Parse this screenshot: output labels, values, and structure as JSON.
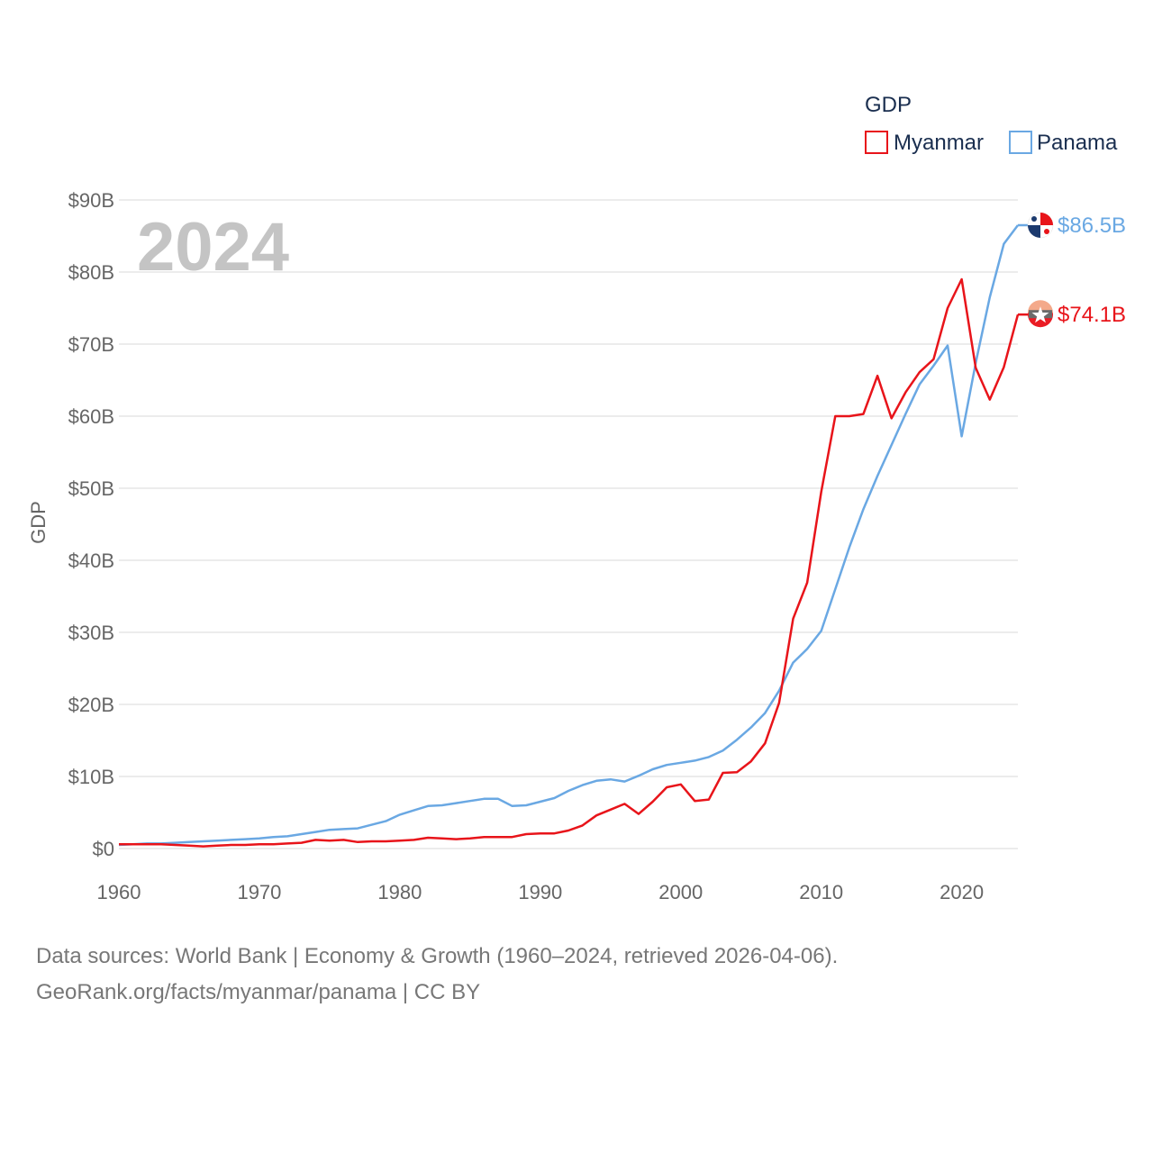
{
  "chart_data": {
    "type": "line",
    "year_watermark": "2024",
    "ylabel": "GDP",
    "legend_title": "GDP",
    "ylim": [
      0,
      90
    ],
    "xlim": [
      1960,
      2024
    ],
    "y_ticks": [
      {
        "value": 0,
        "label": "$0"
      },
      {
        "value": 10,
        "label": "$10B"
      },
      {
        "value": 20,
        "label": "$20B"
      },
      {
        "value": 30,
        "label": "$30B"
      },
      {
        "value": 40,
        "label": "$40B"
      },
      {
        "value": 50,
        "label": "$50B"
      },
      {
        "value": 60,
        "label": "$60B"
      },
      {
        "value": 70,
        "label": "$70B"
      },
      {
        "value": 80,
        "label": "$80B"
      },
      {
        "value": 90,
        "label": "$90B"
      }
    ],
    "x_ticks": [
      {
        "value": 1960,
        "label": "1960"
      },
      {
        "value": 1970,
        "label": "1970"
      },
      {
        "value": 1980,
        "label": "1980"
      },
      {
        "value": 1990,
        "label": "1990"
      },
      {
        "value": 2000,
        "label": "2000"
      },
      {
        "value": 2010,
        "label": "2010"
      },
      {
        "value": 2020,
        "label": "2020"
      }
    ],
    "series": [
      {
        "name": "Myanmar",
        "color": "#e8141a",
        "end_label": "$74.1B",
        "flag": "myanmar-flag",
        "x": [
          1960,
          1961,
          1962,
          1963,
          1964,
          1965,
          1966,
          1967,
          1968,
          1969,
          1970,
          1971,
          1972,
          1973,
          1974,
          1975,
          1976,
          1977,
          1978,
          1979,
          1980,
          1981,
          1982,
          1983,
          1984,
          1985,
          1986,
          1987,
          1988,
          1989,
          1990,
          1991,
          1992,
          1993,
          1994,
          1995,
          1996,
          1997,
          1998,
          1999,
          2000,
          2001,
          2002,
          2003,
          2004,
          2005,
          2006,
          2007,
          2008,
          2009,
          2010,
          2011,
          2012,
          2013,
          2014,
          2015,
          2016,
          2017,
          2018,
          2019,
          2020,
          2021,
          2022,
          2023,
          2024
        ],
        "values": [
          0.6,
          0.6,
          0.6,
          0.6,
          0.5,
          0.4,
          0.3,
          0.4,
          0.5,
          0.5,
          0.6,
          0.6,
          0.7,
          0.8,
          1.2,
          1.1,
          1.2,
          0.9,
          1.0,
          1.0,
          1.1,
          1.2,
          1.5,
          1.4,
          1.3,
          1.4,
          1.6,
          1.6,
          1.6,
          2.0,
          2.1,
          2.1,
          2.5,
          3.2,
          4.6,
          5.4,
          6.2,
          4.8,
          6.5,
          8.5,
          8.9,
          6.6,
          6.8,
          10.5,
          10.6,
          12.1,
          14.6,
          20.2,
          31.9,
          36.9,
          49.5,
          60.0,
          60.0,
          60.3,
          65.6,
          59.7,
          63.3,
          66.1,
          67.9,
          75.0,
          79.0,
          66.7,
          62.3,
          66.8,
          74.1
        ]
      },
      {
        "name": "Panama",
        "color": "#6aa8e3",
        "end_label": "$86.5B",
        "flag": "panama-flag",
        "x": [
          1960,
          1961,
          1962,
          1963,
          1964,
          1965,
          1966,
          1967,
          1968,
          1969,
          1970,
          1971,
          1972,
          1973,
          1974,
          1975,
          1976,
          1977,
          1978,
          1979,
          1980,
          1981,
          1982,
          1983,
          1984,
          1985,
          1986,
          1987,
          1988,
          1989,
          1990,
          1991,
          1992,
          1993,
          1994,
          1995,
          1996,
          1997,
          1998,
          1999,
          2000,
          2001,
          2002,
          2003,
          2004,
          2005,
          2006,
          2007,
          2008,
          2009,
          2010,
          2011,
          2012,
          2013,
          2014,
          2015,
          2016,
          2017,
          2018,
          2019,
          2020,
          2021,
          2022,
          2023,
          2024
        ],
        "values": [
          0.5,
          0.6,
          0.7,
          0.7,
          0.8,
          0.9,
          1.0,
          1.1,
          1.2,
          1.3,
          1.4,
          1.6,
          1.7,
          2.0,
          2.3,
          2.6,
          2.7,
          2.8,
          3.3,
          3.8,
          4.7,
          5.3,
          5.9,
          6.0,
          6.3,
          6.6,
          6.9,
          6.9,
          5.9,
          6.0,
          6.5,
          7.0,
          8.0,
          8.8,
          9.4,
          9.6,
          9.3,
          10.1,
          11.0,
          11.6,
          11.9,
          12.2,
          12.7,
          13.6,
          15.1,
          16.8,
          18.8,
          21.9,
          25.8,
          27.7,
          30.2,
          36.0,
          41.8,
          47.1,
          51.7,
          56.0,
          60.3,
          64.4,
          67.0,
          69.8,
          57.2,
          67.4,
          76.5,
          83.9,
          86.5
        ]
      }
    ],
    "sources": [
      "Data sources: World Bank | Economy & Growth (1960–2024, retrieved 2026-04-06).",
      "GeoRank.org/facts/myanmar/panama | CC BY"
    ]
  }
}
